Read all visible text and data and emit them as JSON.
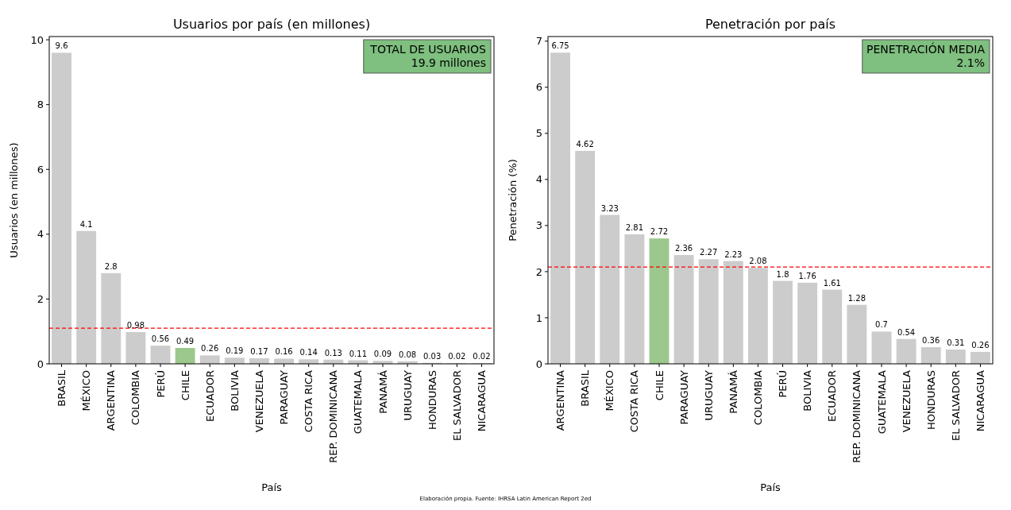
{
  "chart_data": [
    {
      "type": "bar",
      "title": "Usuarios por país (en millones)",
      "xlabel": "País",
      "ylabel": "Usuarios (en millones)",
      "categories": [
        "BRASIL",
        "MÉXICO",
        "ARGENTINA",
        "COLOMBIA",
        "PERÚ",
        "CHILE",
        "ECUADOR",
        "BOLIVIA",
        "VENEZUELA",
        "PARAGUAY",
        "COSTA RICA",
        "REP. DOMINICANA",
        "GUATEMALA",
        "PANAMÁ",
        "URUGUAY",
        "HONDURAS",
        "EL SALVADOR",
        "NICARAGUA"
      ],
      "values": [
        9.6,
        4.1,
        2.8,
        0.98,
        0.56,
        0.49,
        0.26,
        0.19,
        0.17,
        0.16,
        0.14,
        0.13,
        0.11,
        0.09,
        0.08,
        0.03,
        0.02,
        0.02
      ],
      "colors": [
        "#cccccc",
        "#cccccc",
        "#cccccc",
        "#cccccc",
        "#cccccc",
        "#9dc88d",
        "#cccccc",
        "#cccccc",
        "#cccccc",
        "#cccccc",
        "#cccccc",
        "#cccccc",
        "#cccccc",
        "#cccccc",
        "#cccccc",
        "#cccccc",
        "#cccccc",
        "#cccccc"
      ],
      "ylim": [
        0,
        10.1
      ],
      "yticks": [
        0,
        2,
        4,
        6,
        8,
        10
      ],
      "data_labels": true,
      "grid": false,
      "ref_lines": [
        {
          "axis": "y",
          "value": 1.1,
          "color": "#ff0000",
          "line_style": "dashed"
        }
      ],
      "annotations": [
        "TOTAL DE USUARIOS\n19.9 millones",
        "Elaboración propia. Fuente: IHRSA Latin American Report 2ed"
      ]
    },
    {
      "type": "bar",
      "title": "Penetración por país",
      "xlabel": "País",
      "ylabel": "Penetración (%)",
      "categories": [
        "ARGENTINA",
        "BRASIL",
        "MÉXICO",
        "COSTA RICA",
        "CHILE",
        "PARAGUAY",
        "URUGUAY",
        "PANAMÁ",
        "COLOMBIA",
        "PERÚ",
        "BOLIVIA",
        "ECUADOR",
        "REP. DOMINICANA",
        "GUATEMALA",
        "VENEZUELA",
        "HONDURAS",
        "EL SALVADOR",
        "NICARAGUA"
      ],
      "values": [
        6.75,
        4.62,
        3.23,
        2.81,
        2.72,
        2.36,
        2.27,
        2.23,
        2.08,
        1.8,
        1.76,
        1.61,
        1.28,
        0.7,
        0.54,
        0.36,
        0.31,
        0.26
      ],
      "colors": [
        "#cccccc",
        "#cccccc",
        "#cccccc",
        "#cccccc",
        "#9dc88d",
        "#cccccc",
        "#cccccc",
        "#cccccc",
        "#cccccc",
        "#cccccc",
        "#cccccc",
        "#cccccc",
        "#cccccc",
        "#cccccc",
        "#cccccc",
        "#cccccc",
        "#cccccc",
        "#cccccc"
      ],
      "ylim": [
        0,
        7.1
      ],
      "yticks": [
        0,
        1,
        2,
        3,
        4,
        5,
        6,
        7
      ],
      "data_labels": true,
      "grid": false,
      "ref_lines": [
        {
          "axis": "y",
          "value": 2.1,
          "color": "#ff0000",
          "line_style": "dashed"
        }
      ],
      "annotations": [
        "PENETRACIÓN MEDIA\n2.1%"
      ]
    }
  ]
}
